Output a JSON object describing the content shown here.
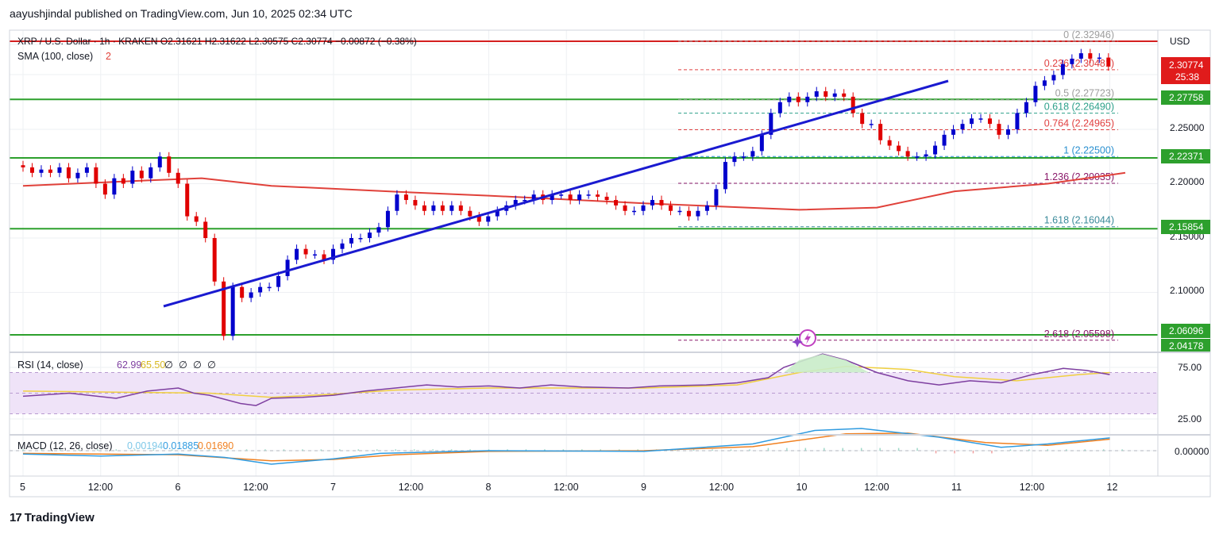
{
  "header": {
    "publish_line": "aayushjindal published on TradingView.com, Jun 10, 2025 02:34 UTC"
  },
  "legend": {
    "symbol_line": "XRP / U.S. Dollar · 1h · KRAKEN  O2.31621  H2.31622  L2.30575  C2.30774  −0.00872 (−0.38%)",
    "sma_label": "SMA (100, close)",
    "sma_count": "2"
  },
  "price_axis": {
    "currency": "USD",
    "ticks": [
      "2.25000",
      "2.20000",
      "2.15000",
      "2.10000"
    ],
    "current_price": "2.30774",
    "countdown": "25:38",
    "level_badges": [
      "2.27758",
      "2.22371",
      "2.15854",
      "2.06096",
      "2.04178"
    ]
  },
  "fib_levels": [
    {
      "ratio": "0",
      "price": "2.32946"
    },
    {
      "ratio": "0.236",
      "price": "2.30481"
    },
    {
      "ratio": "0.5",
      "price": "2.27723"
    },
    {
      "ratio": "0.618",
      "price": "2.26490"
    },
    {
      "ratio": "0.764",
      "price": "2.24965"
    },
    {
      "ratio": "1",
      "price": "2.22500"
    },
    {
      "ratio": "1.236",
      "price": "2.20035"
    },
    {
      "ratio": "1.618",
      "price": "2.16044"
    },
    {
      "ratio": "2.618",
      "price": "2.05598"
    }
  ],
  "rsi_panel": {
    "label": "RSI (14, close)",
    "rsi_value": "62.99",
    "ma_value": "65.50",
    "extra_values": [
      "∅",
      "∅",
      "∅",
      "∅"
    ],
    "ticks": [
      "75.00",
      "25.00"
    ]
  },
  "macd_panel": {
    "label": "MACD (12, 26, close)",
    "histogram": "0.00194",
    "macd": "0.01885",
    "signal": "0.01690",
    "tick": "0.00000"
  },
  "time_axis": {
    "labels": [
      "5",
      "12:00",
      "6",
      "12:00",
      "7",
      "12:00",
      "8",
      "12:00",
      "9",
      "12:00",
      "10",
      "12:00",
      "11",
      "12:00",
      "12"
    ]
  },
  "footer": {
    "logo_mark": "17",
    "brand": "TradingView"
  },
  "colors": {
    "up_candle": "#0000cc",
    "down_candle": "#e00000",
    "sma": "#e0413a",
    "support_line": "#2da02d",
    "trendline": "#1a1ad0",
    "resistance": "#d42020",
    "rsi_line": "#7e3fa0",
    "rsi_ma": "#f0d040",
    "rsi_band": "#efe3f8",
    "macd_line": "#2f9be0",
    "signal_line": "#f08020",
    "price_badge_current": "#e01b1b",
    "price_badge_level": "#2da02d"
  },
  "chart_data": {
    "type": "candlestick",
    "symbol": "XRP / U.S. Dollar",
    "interval": "1h",
    "exchange": "KRAKEN",
    "ohlc_last": {
      "open": 2.31621,
      "high": 2.31622,
      "low": 2.30575,
      "close": 2.30774,
      "change": -0.00872,
      "change_pct": -0.38
    },
    "y_range": [
      2.04,
      2.345
    ],
    "x_range": [
      "Jun 5",
      "Jun 12"
    ],
    "closes_approx": [
      2.215,
      2.21,
      2.213,
      2.21,
      2.215,
      2.205,
      2.21,
      2.215,
      2.2,
      2.19,
      2.205,
      2.2,
      2.212,
      2.205,
      2.215,
      2.225,
      2.21,
      2.2,
      2.17,
      2.165,
      2.15,
      2.11,
      2.06,
      2.105,
      2.095,
      2.1,
      2.105,
      2.105,
      2.115,
      2.13,
      2.14,
      2.135,
      2.135,
      2.13,
      2.14,
      2.145,
      2.15,
      2.15,
      2.155,
      2.16,
      2.175,
      2.19,
      2.185,
      2.18,
      2.175,
      2.18,
      2.175,
      2.18,
      2.175,
      2.17,
      2.165,
      2.17,
      2.175,
      2.18,
      2.185,
      2.185,
      2.19,
      2.185,
      2.19,
      2.19,
      2.185,
      2.19,
      2.19,
      2.188,
      2.185,
      2.18,
      2.175,
      2.175,
      2.18,
      2.185,
      2.18,
      2.175,
      2.175,
      2.17,
      2.175,
      2.18,
      2.195,
      2.22,
      2.225,
      2.225,
      2.23,
      2.245,
      2.265,
      2.275,
      2.28,
      2.275,
      2.28,
      2.285,
      2.28,
      2.283,
      2.28,
      2.265,
      2.255,
      2.255,
      2.24,
      2.235,
      2.23,
      2.225,
      2.225,
      2.227,
      2.235,
      2.245,
      2.25,
      2.255,
      2.26,
      2.26,
      2.255,
      2.245,
      2.25,
      2.265,
      2.275,
      2.29,
      2.295,
      2.3,
      2.31,
      2.315,
      2.32,
      2.315,
      2.316,
      2.308
    ],
    "sma100": [
      [
        0,
        2.198
      ],
      [
        1.15,
        2.205
      ],
      [
        1.6,
        2.198
      ],
      [
        3,
        2.189
      ],
      [
        5,
        2.176
      ],
      [
        6,
        2.193
      ],
      [
        7.1,
        2.21
      ]
    ],
    "trendline": [
      [
        1.15,
        2.084
      ],
      [
        7.9,
        2.29
      ]
    ],
    "horizontal_levels": [
      2.329,
      2.27758,
      2.22371,
      2.15854,
      2.06096
    ],
    "fibonacci": [
      {
        "ratio": 0,
        "price": 2.32946
      },
      {
        "ratio": 0.236,
        "price": 2.30481
      },
      {
        "ratio": 0.5,
        "price": 2.27723
      },
      {
        "ratio": 0.618,
        "price": 2.2649
      },
      {
        "ratio": 0.764,
        "price": 2.24965
      },
      {
        "ratio": 1,
        "price": 2.225
      },
      {
        "ratio": 1.236,
        "price": 2.20035
      },
      {
        "ratio": 1.618,
        "price": 2.16044
      },
      {
        "ratio": 2.618,
        "price": 2.05598
      }
    ],
    "rsi": {
      "range": [
        0,
        100
      ],
      "bands": [
        30,
        70
      ],
      "values": [
        [
          0,
          47
        ],
        [
          0.3,
          50
        ],
        [
          0.6,
          45
        ],
        [
          0.8,
          52
        ],
        [
          1,
          55
        ],
        [
          1.1,
          50
        ],
        [
          1.2,
          48
        ],
        [
          1.4,
          40
        ],
        [
          1.5,
          38
        ],
        [
          1.6,
          45
        ],
        [
          1.8,
          46
        ],
        [
          2,
          48
        ],
        [
          2.2,
          52
        ],
        [
          2.4,
          55
        ],
        [
          2.6,
          58
        ],
        [
          2.8,
          56
        ],
        [
          3,
          57
        ],
        [
          3.2,
          55
        ],
        [
          3.4,
          58
        ],
        [
          3.6,
          56
        ],
        [
          3.9,
          55
        ],
        [
          4.1,
          57
        ],
        [
          4.4,
          58
        ],
        [
          4.6,
          60
        ],
        [
          4.8,
          65
        ],
        [
          4.9,
          75
        ],
        [
          5.15,
          88
        ],
        [
          5.3,
          82
        ],
        [
          5.5,
          70
        ],
        [
          5.7,
          62
        ],
        [
          5.9,
          58
        ],
        [
          6.1,
          62
        ],
        [
          6.3,
          60
        ],
        [
          6.5,
          68
        ],
        [
          6.7,
          74
        ],
        [
          6.85,
          72
        ],
        [
          7,
          68
        ]
      ],
      "ma": [
        [
          0,
          52
        ],
        [
          0.6,
          51
        ],
        [
          1.2,
          50
        ],
        [
          1.6,
          46
        ],
        [
          2,
          49
        ],
        [
          2.4,
          53
        ],
        [
          3,
          55
        ],
        [
          4,
          55
        ],
        [
          4.6,
          58
        ],
        [
          5,
          70
        ],
        [
          5.3,
          76
        ],
        [
          5.7,
          73
        ],
        [
          6,
          66
        ],
        [
          6.4,
          62
        ],
        [
          6.8,
          68
        ],
        [
          7,
          70
        ]
      ]
    },
    "macd": {
      "macd_line": [
        [
          0,
          -0.005
        ],
        [
          0.5,
          -0.008
        ],
        [
          1,
          -0.005
        ],
        [
          1.3,
          -0.01
        ],
        [
          1.6,
          -0.02
        ],
        [
          2,
          -0.012
        ],
        [
          2.3,
          -0.004
        ],
        [
          3,
          0
        ],
        [
          4,
          -0.001
        ],
        [
          4.7,
          0.01
        ],
        [
          5.1,
          0.03
        ],
        [
          5.4,
          0.033
        ],
        [
          5.9,
          0.02
        ],
        [
          6.3,
          0.005
        ],
        [
          6.6,
          0.01
        ],
        [
          7,
          0.019
        ]
      ],
      "signal_line": [
        [
          0,
          -0.004
        ],
        [
          1,
          -0.006
        ],
        [
          1.6,
          -0.015
        ],
        [
          2,
          -0.013
        ],
        [
          2.4,
          -0.006
        ],
        [
          3,
          -0.001
        ],
        [
          4,
          0
        ],
        [
          4.7,
          0.006
        ],
        [
          5.3,
          0.025
        ],
        [
          5.7,
          0.026
        ],
        [
          6.2,
          0.012
        ],
        [
          6.6,
          0.008
        ],
        [
          7,
          0.017
        ]
      ]
    }
  }
}
